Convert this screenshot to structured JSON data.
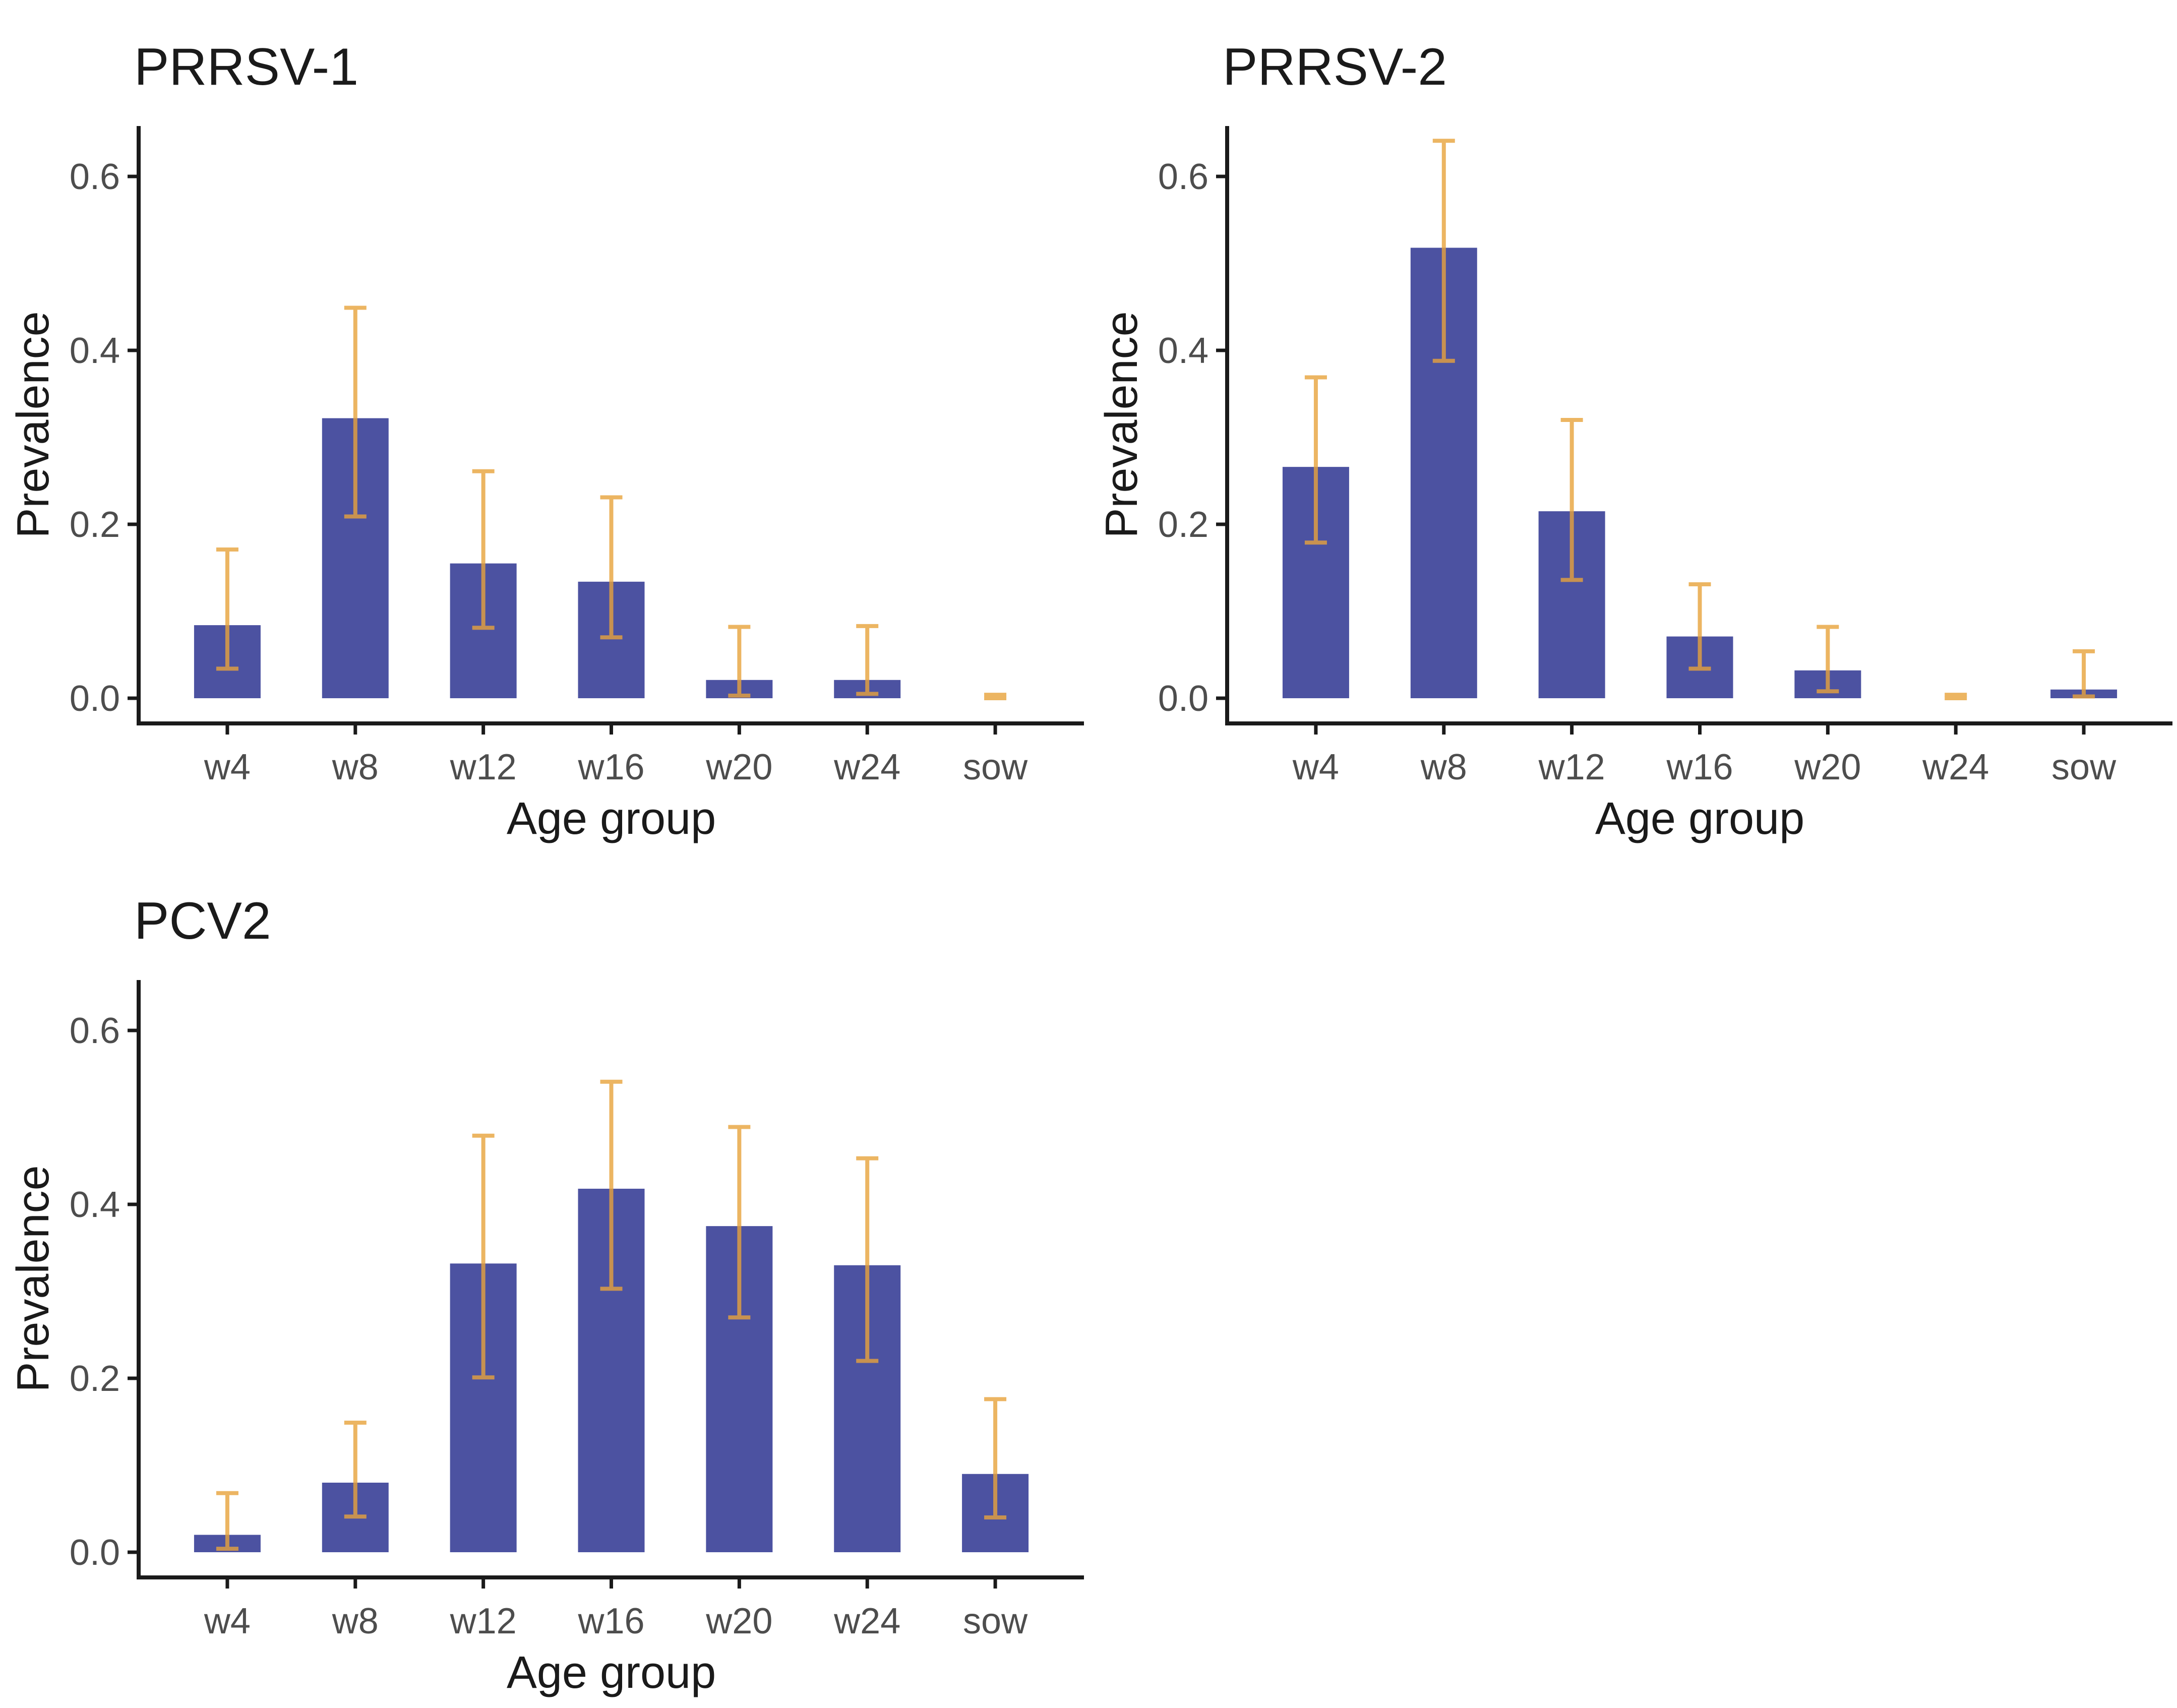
{
  "figure": {
    "background_color": "#ffffff",
    "layout": "2x2 grid, bottom-right cell empty"
  },
  "style": {
    "bar_color": "#4C52A1",
    "error_bar_color": "#E8A33C",
    "error_bar_opacity": 0.8,
    "axis_line_color": "#1a1a1a",
    "tick_label_color": "#4d4d4d",
    "title_color": "#1a1a1a",
    "axis_title_color": "#1a1a1a"
  },
  "chart_data": [
    {
      "type": "bar",
      "title": "PRRSV-1",
      "xlabel": "Age group",
      "ylabel": "Prevalence",
      "categories": [
        "w4",
        "w8",
        "w12",
        "w16",
        "w20",
        "w24",
        "sow"
      ],
      "values": [
        0.084,
        0.322,
        0.155,
        0.134,
        0.021,
        0.021,
        0.0
      ],
      "ci_low": [
        0.034,
        0.209,
        0.081,
        0.07,
        0.003,
        0.005,
        0.0
      ],
      "ci_high": [
        0.171,
        0.449,
        0.261,
        0.231,
        0.082,
        0.083,
        0.004
      ],
      "yticks": [
        0.0,
        0.2,
        0.4,
        0.6
      ],
      "ytick_labels": [
        "0.0",
        "0.2",
        "0.4",
        "0.6"
      ],
      "ylim": [
        -0.03,
        0.66
      ],
      "grid": false,
      "legend": "none",
      "error_bars": "orange, capped, both directions"
    },
    {
      "type": "bar",
      "title": "PRRSV-2",
      "xlabel": "Age group",
      "ylabel": "Prevalence",
      "categories": [
        "w4",
        "w8",
        "w12",
        "w16",
        "w20",
        "w24",
        "sow"
      ],
      "values": [
        0.266,
        0.518,
        0.215,
        0.071,
        0.032,
        0.0,
        0.01
      ],
      "ci_low": [
        0.179,
        0.388,
        0.136,
        0.034,
        0.008,
        0.0,
        0.002
      ],
      "ci_high": [
        0.369,
        0.641,
        0.32,
        0.131,
        0.082,
        0.004,
        0.054
      ],
      "yticks": [
        0.0,
        0.2,
        0.4,
        0.6
      ],
      "ytick_labels": [
        "0.0",
        "0.2",
        "0.4",
        "0.6"
      ],
      "ylim": [
        -0.03,
        0.66
      ],
      "grid": false,
      "legend": "none",
      "error_bars": "orange, capped, both directions"
    },
    {
      "type": "bar",
      "title": "PCV2",
      "xlabel": "Age group",
      "ylabel": "Prevalence",
      "categories": [
        "w4",
        "w8",
        "w12",
        "w16",
        "w20",
        "w24",
        "sow"
      ],
      "values": [
        0.02,
        0.08,
        0.332,
        0.418,
        0.375,
        0.33,
        0.09
      ],
      "ci_low": [
        0.004,
        0.041,
        0.201,
        0.303,
        0.27,
        0.22,
        0.04
      ],
      "ci_high": [
        0.068,
        0.149,
        0.479,
        0.541,
        0.489,
        0.453,
        0.176
      ],
      "yticks": [
        0.0,
        0.2,
        0.4,
        0.6
      ],
      "ytick_labels": [
        "0.0",
        "0.2",
        "0.4",
        "0.6"
      ],
      "ylim": [
        -0.03,
        0.66
      ],
      "grid": false,
      "legend": "none",
      "error_bars": "orange, capped, both directions"
    }
  ]
}
